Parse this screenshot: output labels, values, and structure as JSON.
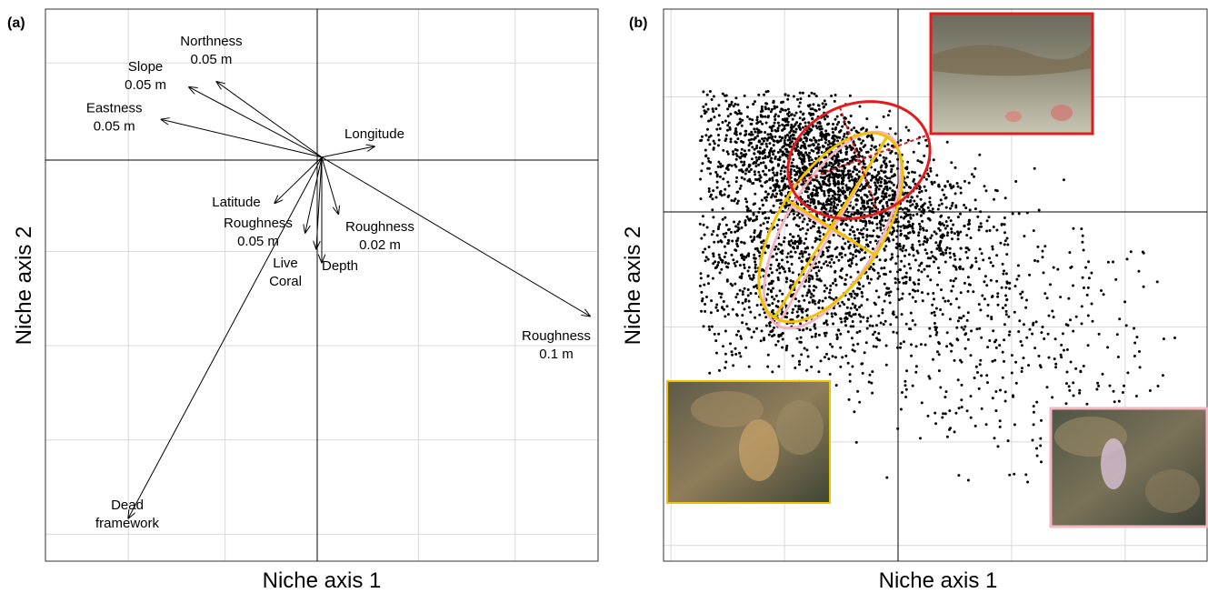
{
  "panels": {
    "a": {
      "label": "(a)",
      "xlabel": "Niche axis 1",
      "ylabel": "Niche axis 2"
    },
    "b": {
      "label": "(b)",
      "xlabel": "Niche axis 1",
      "ylabel": "Niche axis 2"
    }
  },
  "colors": {
    "arrow": "#000000",
    "point": "#000000",
    "ellipse_red": "#e41a1c",
    "ellipse_yellow": "#f2c200",
    "ellipse_pink": "#f4b6c2",
    "grid": "#d9d9d9"
  },
  "chart_data": [
    {
      "type": "biplot",
      "panel": "a",
      "title": "",
      "xlabel": "Niche axis 1",
      "ylabel": "Niche axis 2",
      "xlim": [
        -1.0,
        1.0
      ],
      "ylim": [
        -1.5,
        0.55
      ],
      "grid": true,
      "arrows": [
        {
          "label": "Northness 0.05 m",
          "lines": [
            "Northness",
            "0.05 m"
          ],
          "x": -0.38,
          "y": 0.28
        },
        {
          "label": "Slope 0.05 m",
          "lines": [
            "Slope",
            "0.05 m"
          ],
          "x": -0.48,
          "y": 0.26
        },
        {
          "label": "Eastness 0.05 m",
          "lines": [
            "Eastness",
            "0.05 m"
          ],
          "x": -0.58,
          "y": 0.14
        },
        {
          "label": "Longitude",
          "lines": [
            "Longitude"
          ],
          "x": 0.19,
          "y": 0.04
        },
        {
          "label": "Latitude",
          "lines": [
            "Latitude"
          ],
          "x": -0.17,
          "y": -0.17
        },
        {
          "label": "Roughness 0.05 m",
          "lines": [
            "Roughness",
            "0.05 m"
          ],
          "x": -0.06,
          "y": -0.28
        },
        {
          "label": "Roughness 0.02 m",
          "lines": [
            "Roughness",
            "0.02 m"
          ],
          "x": 0.06,
          "y": -0.21
        },
        {
          "label": "Live Coral",
          "lines": [
            "Live",
            "Coral"
          ],
          "x": -0.02,
          "y": -0.34
        },
        {
          "label": "Depth",
          "lines": [
            "Depth"
          ],
          "x": 0.0,
          "y": -0.39
        },
        {
          "label": "Roughness 0.1 m",
          "lines": [
            "Roughness",
            "0.1 m"
          ],
          "x": 0.97,
          "y": -0.59
        },
        {
          "label": "Dead framework",
          "lines": [
            "Dead",
            "framework"
          ],
          "x": -0.7,
          "y": -1.34
        }
      ]
    },
    {
      "type": "scatter",
      "panel": "b",
      "title": "",
      "xlabel": "Niche axis 1",
      "ylabel": "Niche axis 2",
      "xlim": [
        -2.0,
        2.5
      ],
      "ylim": [
        -3.0,
        1.8
      ],
      "grid": true,
      "point_clouds": [
        {
          "n": 2300,
          "cx": -0.6,
          "cy": 0.35,
          "sx": 0.65,
          "sy": 0.28,
          "rot_deg": -30
        },
        {
          "n": 1200,
          "cx": -0.95,
          "cy": -0.55,
          "sx": 0.55,
          "sy": 0.45,
          "rot_deg": -20
        },
        {
          "n": 500,
          "cx": 0.9,
          "cy": -1.05,
          "sx": 0.75,
          "sy": 0.55,
          "rot_deg": -35
        }
      ],
      "ellipses": [
        {
          "color": "red",
          "cx": -0.3,
          "cy": 0.45,
          "rx": 0.65,
          "ry": 0.45,
          "rot_deg": -30
        },
        {
          "color": "yellow",
          "cx": -0.4,
          "cy": -0.1,
          "rx": 0.95,
          "ry": 0.5,
          "rot_deg": -62
        },
        {
          "color": "pink",
          "cx": -0.45,
          "cy": -0.15,
          "rx": 0.95,
          "ry": 0.55,
          "rot_deg": -60
        }
      ]
    }
  ]
}
